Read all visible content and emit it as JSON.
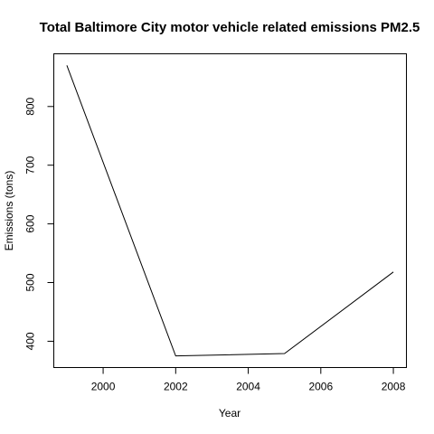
{
  "chart_data": {
    "type": "line",
    "title": "Total Baltimore City motor vehicle related emissions PM2.5",
    "xlabel": "Year",
    "ylabel": "Emissions (tons)",
    "x": [
      1999,
      2002,
      2005,
      2008
    ],
    "series": [
      {
        "values": [
          870,
          375,
          379,
          518
        ]
      }
    ],
    "xlim": [
      1998.64,
      2008.36
    ],
    "ylim": [
      355.2,
      889.8
    ],
    "xticks": [
      2000,
      2002,
      2004,
      2006,
      2008
    ],
    "yticks": [
      400,
      500,
      600,
      700,
      800
    ],
    "grid": false,
    "colors": {
      "line": "#000000"
    }
  }
}
